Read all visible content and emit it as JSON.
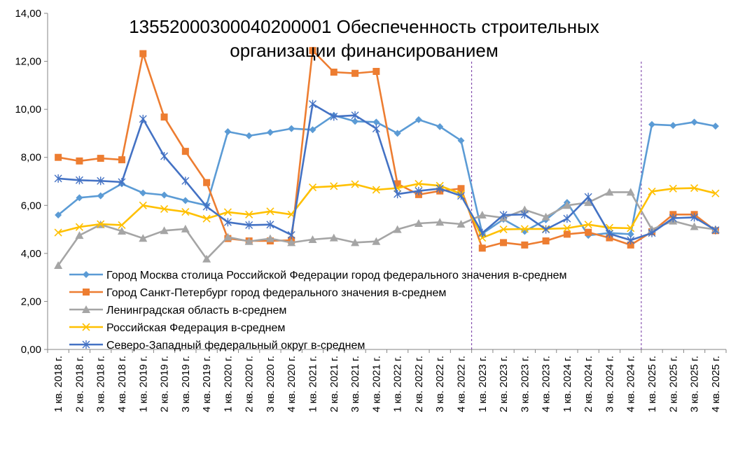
{
  "chart_data": {
    "type": "line",
    "title_lines": [
      "13552000300040200001 Обеспеченность строительных",
      "организации финансированием"
    ],
    "xlabel": "",
    "ylabel": "",
    "ylim": [
      0,
      14
    ],
    "y_ticks": [
      "0,00",
      "2,00",
      "4,00",
      "6,00",
      "8,00",
      "10,00",
      "12,00",
      "14,00"
    ],
    "grid": false,
    "legend_position": "inside-lower-left",
    "categories": [
      "1 кв. 2018 г.",
      "2 кв. 2018 г.",
      "3 кв. 2018 г.",
      "4 кв. 2018 г.",
      "1 кв. 2019 г.",
      "2 кв. 2019 г.",
      "3 кв. 2019 г.",
      "4 кв. 2019 г.",
      "1 кв. 2020 г.",
      "2 кв. 2020 г.",
      "3 кв. 2020 г.",
      "4 кв. 2020 г.",
      "1 кв. 2021 г.",
      "2 кв. 2021 г.",
      "3 кв. 2021 г.",
      "4 кв. 2021 г.",
      "1 кв. 2022 г.",
      "2 кв. 2022 г.",
      "3 кв. 2022 г.",
      "4 кв. 2022 г.",
      "1 кв. 2023 г.",
      "2 кв. 2023 г.",
      "3 кв. 2023 г.",
      "4 кв. 2023 г.",
      "1 кв. 2024 г.",
      "2 кв. 2024 г.",
      "3 кв. 2024 г.",
      "4 кв. 2024 г.",
      "1 кв. 2025 г.",
      "2 кв. 2025 г.",
      "3 кв. 2025 г.",
      "4 кв. 2025 г."
    ],
    "dashed_vertical_lines_between_categories": [
      [
        19,
        20
      ],
      [
        27,
        28
      ]
    ],
    "series": [
      {
        "name": "Город Москва столица Российской Федерации город федерального значения в-среднем",
        "color": "#5B9BD5",
        "marker": "diamond",
        "values": [
          5.6,
          6.32,
          6.4,
          6.9,
          6.52,
          6.43,
          6.2,
          6.0,
          9.07,
          8.9,
          9.04,
          9.2,
          9.15,
          9.75,
          9.5,
          9.47,
          9.0,
          9.57,
          9.28,
          8.7,
          4.82,
          5.42,
          4.92,
          5.4,
          6.12,
          4.75,
          4.85,
          4.8,
          9.37,
          9.33,
          9.47,
          9.3
        ]
      },
      {
        "name": "Город Санкт-Петербург город федерального значения в-среднем",
        "color": "#ED7D31",
        "marker": "square",
        "values": [
          8.0,
          7.85,
          7.96,
          7.9,
          12.32,
          9.68,
          8.25,
          6.95,
          4.62,
          4.52,
          4.52,
          4.55,
          12.45,
          11.55,
          11.5,
          11.58,
          6.9,
          6.45,
          6.6,
          6.7,
          4.22,
          4.45,
          4.35,
          4.52,
          4.8,
          4.88,
          4.65,
          4.35,
          4.9,
          5.62,
          5.62,
          4.95
        ]
      },
      {
        "name": "Ленинградская область в-среднем",
        "color": "#A5A5A5",
        "marker": "triangle",
        "values": [
          3.5,
          4.75,
          5.2,
          4.93,
          4.63,
          4.95,
          5.02,
          3.77,
          4.68,
          4.5,
          4.62,
          4.45,
          4.58,
          4.65,
          4.45,
          4.5,
          5.0,
          5.25,
          5.3,
          5.22,
          5.6,
          5.48,
          5.82,
          5.52,
          6.0,
          6.12,
          6.55,
          6.55,
          5.0,
          5.35,
          5.12,
          5.0
        ]
      },
      {
        "name": "Российская Федерация в-среднем",
        "color": "#FFC000",
        "marker": "x",
        "values": [
          4.87,
          5.1,
          5.22,
          5.18,
          6.0,
          5.85,
          5.73,
          5.45,
          5.72,
          5.62,
          5.75,
          5.62,
          6.75,
          6.8,
          6.88,
          6.65,
          6.72,
          6.9,
          6.82,
          6.48,
          4.65,
          5.0,
          5.02,
          5.02,
          5.05,
          5.2,
          5.07,
          5.05,
          6.58,
          6.7,
          6.72,
          6.5
        ]
      },
      {
        "name": "Северо-Западный федеральный округ в-среднем",
        "color": "#4472C4",
        "marker": "asterisk",
        "values": [
          7.12,
          7.05,
          7.02,
          6.97,
          9.6,
          8.05,
          7.02,
          5.95,
          5.3,
          5.18,
          5.2,
          4.77,
          10.22,
          9.7,
          9.75,
          9.2,
          6.47,
          6.6,
          6.7,
          6.4,
          4.85,
          5.6,
          5.62,
          5.0,
          5.45,
          6.35,
          4.82,
          4.55,
          4.85,
          5.47,
          5.5,
          4.97
        ]
      }
    ]
  }
}
